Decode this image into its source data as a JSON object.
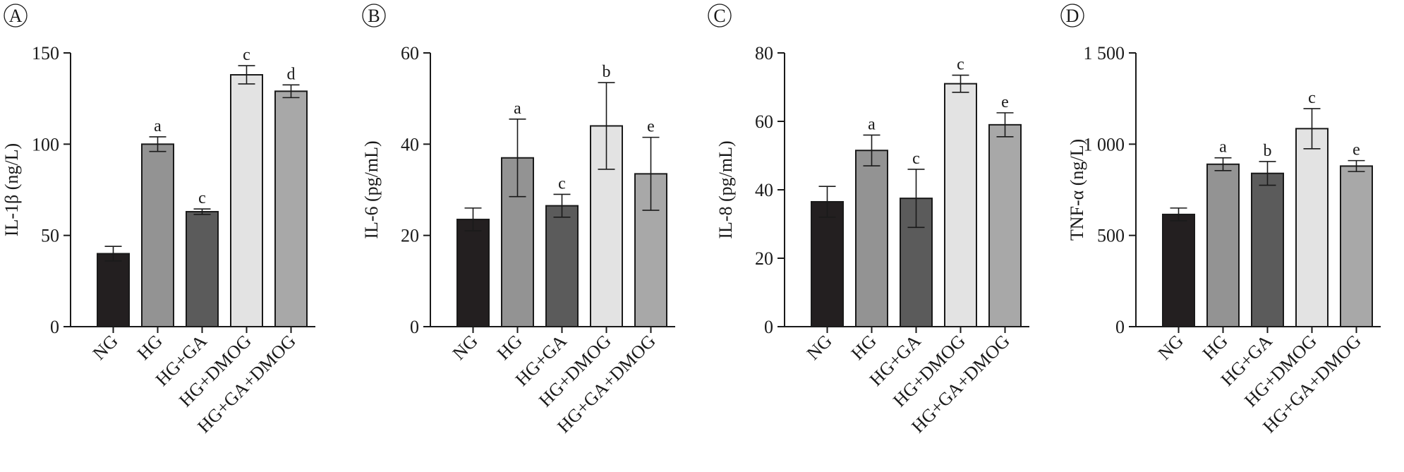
{
  "chart_data": [
    {
      "type": "bar",
      "panel": "A",
      "ylabel": "IL-1β (ng/L)",
      "ylim": [
        0,
        150
      ],
      "yticks": [
        0,
        50,
        100,
        150
      ],
      "ytick_labels": [
        "0",
        "50",
        "100",
        "150"
      ],
      "categories": [
        "NG",
        "HG",
        "HG+GA",
        "HG+DMOG",
        "HG+GA+DMOG"
      ],
      "values": [
        40,
        100,
        63,
        138,
        129
      ],
      "errors": [
        4,
        4,
        1.5,
        5,
        3.5
      ],
      "significance": [
        "",
        "a",
        "c",
        "c",
        "d"
      ],
      "colors": [
        "#231f20",
        "#939393",
        "#5b5b5b",
        "#e3e3e3",
        "#a8a8a8"
      ]
    },
    {
      "type": "bar",
      "panel": "B",
      "ylabel": "IL-6 (pg/mL)",
      "ylim": [
        0,
        60
      ],
      "yticks": [
        0,
        20,
        40,
        60
      ],
      "ytick_labels": [
        "0",
        "20",
        "40",
        "60"
      ],
      "categories": [
        "NG",
        "HG",
        "HG+GA",
        "HG+DMOG",
        "HG+GA+DMOG"
      ],
      "values": [
        23.5,
        37,
        26.5,
        44,
        33.5
      ],
      "errors": [
        2.5,
        8.5,
        2.5,
        9.5,
        8
      ],
      "significance": [
        "",
        "a",
        "c",
        "b",
        "e"
      ],
      "colors": [
        "#231f20",
        "#939393",
        "#5b5b5b",
        "#e3e3e3",
        "#a8a8a8"
      ]
    },
    {
      "type": "bar",
      "panel": "C",
      "ylabel": "IL-8 (pg/mL)",
      "ylim": [
        0,
        80
      ],
      "yticks": [
        0,
        20,
        40,
        60,
        80
      ],
      "ytick_labels": [
        "0",
        "20",
        "40",
        "60",
        "80"
      ],
      "categories": [
        "NG",
        "HG",
        "HG+GA",
        "HG+DMOG",
        "HG+GA+DMOG"
      ],
      "values": [
        36.5,
        51.5,
        37.5,
        71,
        59
      ],
      "errors": [
        4.5,
        4.5,
        8.5,
        2.5,
        3.5
      ],
      "significance": [
        "",
        "a",
        "c",
        "c",
        "e"
      ],
      "colors": [
        "#231f20",
        "#939393",
        "#5b5b5b",
        "#e3e3e3",
        "#a8a8a8"
      ]
    },
    {
      "type": "bar",
      "panel": "D",
      "ylabel": "TNF-α (ng/L)",
      "ylim": [
        0,
        1500
      ],
      "yticks": [
        0,
        500,
        1000,
        1500
      ],
      "ytick_labels": [
        "0",
        "500",
        "1 000",
        "1 500"
      ],
      "categories": [
        "NG",
        "HG",
        "HG+GA",
        "HG+DMOG",
        "HG+GA+DMOG"
      ],
      "values": [
        615,
        890,
        840,
        1085,
        880
      ],
      "errors": [
        35,
        35,
        65,
        110,
        30
      ],
      "significance": [
        "",
        "a",
        "b",
        "c",
        "e"
      ],
      "colors": [
        "#231f20",
        "#939393",
        "#5b5b5b",
        "#e3e3e3",
        "#a8a8a8"
      ]
    }
  ]
}
